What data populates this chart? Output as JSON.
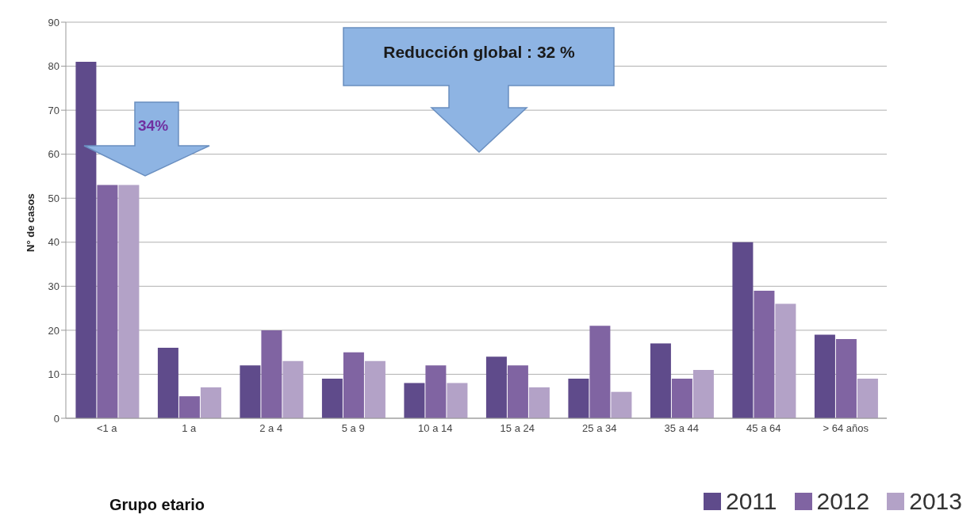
{
  "chart_data": {
    "type": "bar",
    "ylabel": "N° de casos",
    "xlabel": "Grupo etario",
    "categories": [
      "<1 a",
      "1 a",
      "2 a 4",
      "5 a 9",
      "10 a 14",
      "15 a 24",
      "25 a 34",
      "35 a 44",
      "45 a 64",
      "> 64 años"
    ],
    "series": [
      {
        "name": "2011",
        "color": "#5f4b8b",
        "values": [
          81,
          16,
          12,
          9,
          8,
          14,
          9,
          17,
          40,
          19
        ]
      },
      {
        "name": "2012",
        "color": "#8064a2",
        "values": [
          53,
          5,
          20,
          15,
          12,
          12,
          21,
          9,
          29,
          18
        ]
      },
      {
        "name": "2013",
        "color": "#b3a2c7",
        "values": [
          53,
          7,
          13,
          13,
          8,
          7,
          6,
          11,
          26,
          9
        ]
      }
    ],
    "ylim": [
      0,
      90
    ],
    "yticks": [
      0,
      10,
      20,
      30,
      40,
      50,
      60,
      70,
      80,
      90
    ],
    "grid": "y",
    "legend": "bottom right",
    "annotations": [
      "34%",
      "Reducción global : 32 %"
    ]
  }
}
